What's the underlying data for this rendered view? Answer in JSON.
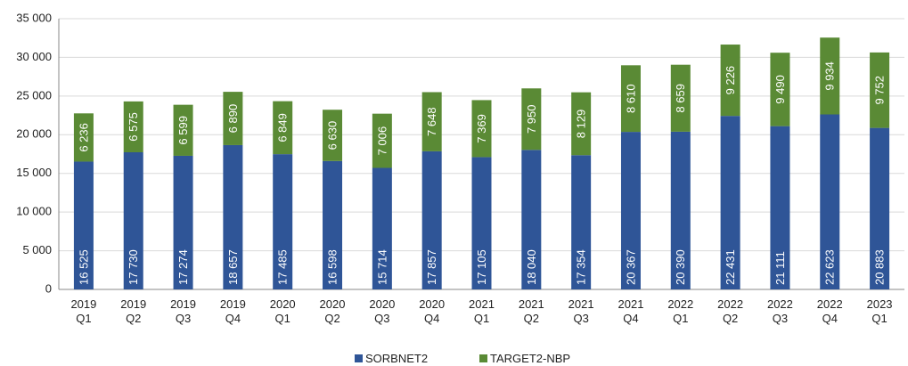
{
  "chart_data": {
    "type": "stacked_bar",
    "categories": [
      "2019 Q1",
      "2019 Q2",
      "2019 Q3",
      "2019 Q4",
      "2020 Q1",
      "2020 Q2",
      "2020 Q3",
      "2020 Q4",
      "2021 Q1",
      "2021 Q2",
      "2021 Q3",
      "2021 Q4",
      "2022 Q1",
      "2022 Q2",
      "2022 Q3",
      "2022 Q4",
      "2023 Q1"
    ],
    "series": [
      {
        "name": "SORBNET2",
        "color": "#2f5597",
        "values": [
          16525,
          17730,
          17274,
          18657,
          17485,
          16598,
          15714,
          17857,
          17105,
          18040,
          17354,
          20367,
          20390,
          22431,
          21111,
          22623,
          20883
        ],
        "value_labels": [
          "16 525",
          "17 730",
          "17 274",
          "18 657",
          "17 485",
          "16 598",
          "15 714",
          "17 857",
          "17 105",
          "18 040",
          "17 354",
          "20 367",
          "20 390",
          "22 431",
          "21 111",
          "22 623",
          "20 883"
        ]
      },
      {
        "name": "TARGET2-NBP",
        "color": "#5a8a35",
        "values": [
          6236,
          6575,
          6599,
          6890,
          6849,
          6630,
          7006,
          7648,
          7369,
          7950,
          8129,
          8610,
          8659,
          9226,
          9490,
          9934,
          9752
        ],
        "value_labels": [
          "6 236",
          "6 575",
          "6 599",
          "6 890",
          "6 849",
          "6 630",
          "7 006",
          "7 648",
          "7 369",
          "7 950",
          "8 129",
          "8 610",
          "8 659",
          "9 226",
          "9 490",
          "9 934",
          "9 752"
        ]
      }
    ],
    "ylim": [
      0,
      35000
    ],
    "yticks": [
      0,
      {
        "value": 5000,
        "label": "5 000"
      },
      {
        "value": 10000,
        "label": "10 000"
      },
      {
        "value": 15000,
        "label": "15 000"
      },
      {
        "value": 20000,
        "label": "20 000"
      },
      {
        "value": 25000,
        "label": "25 000"
      },
      {
        "value": 30000,
        "label": "30 000"
      },
      {
        "value": 35000,
        "label": "35 000"
      }
    ],
    "grid": true,
    "legend": "bottom"
  }
}
